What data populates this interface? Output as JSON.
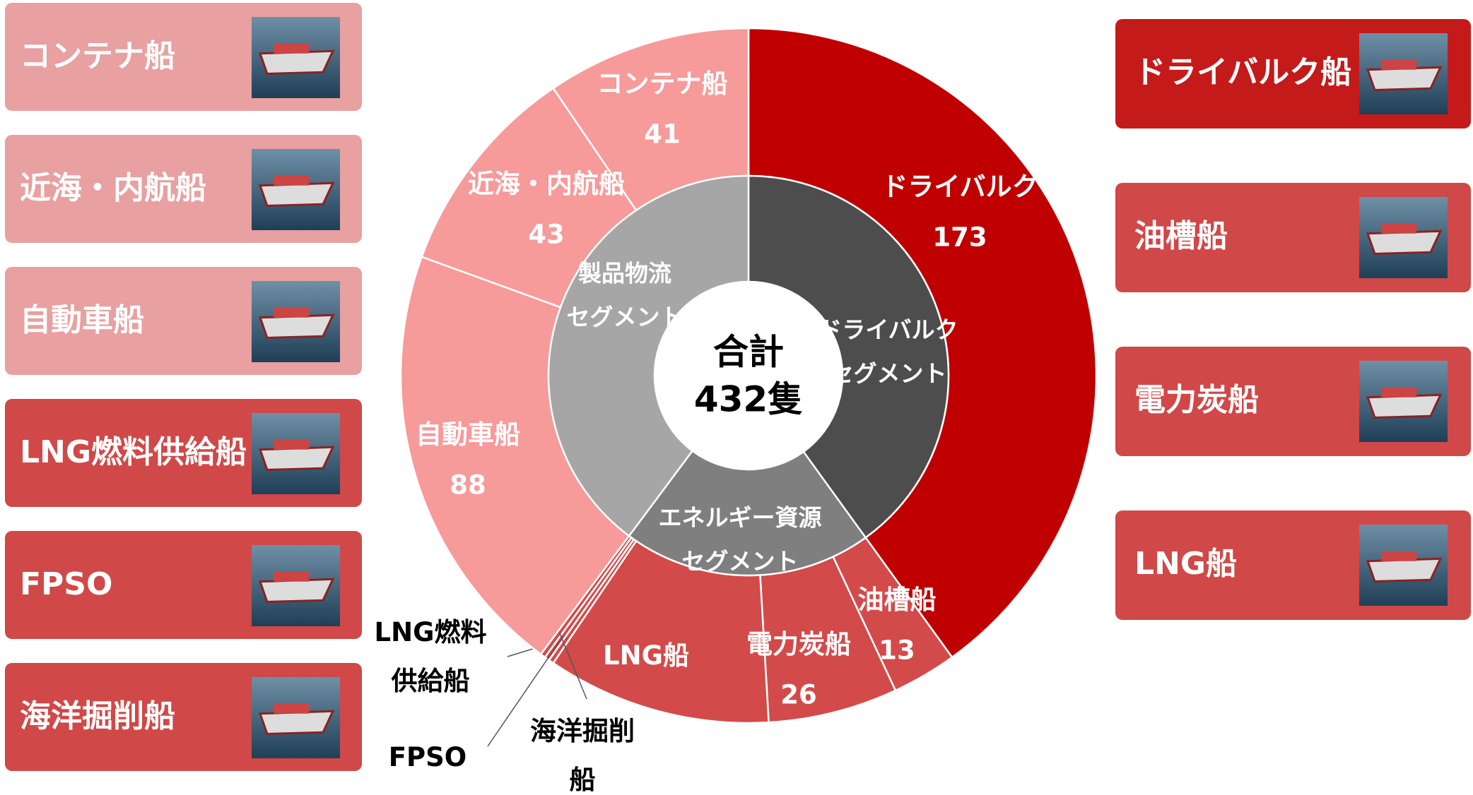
{
  "chart_data": {
    "type": "sunburst",
    "center": [
      "合計",
      "432隻"
    ],
    "segments": [
      {
        "name": [
          "ドライバルク",
          "セグメント"
        ],
        "color": "#4d4d4d",
        "item_color": "#c00000",
        "items": [
          {
            "name": [
              "ドライバルク"
            ],
            "value": 173
          }
        ]
      },
      {
        "name": [
          "エネルギー資源",
          "セグメント"
        ],
        "color": "#7f7f7f",
        "item_color": "#d34a4a",
        "items": [
          {
            "name": [
              "油槽船"
            ],
            "value": 13
          },
          {
            "name": [
              "電力炭船"
            ],
            "value": 26
          },
          {
            "name": [
              "LNG船"
            ],
            "value": 45
          },
          {
            "name": [
              "LNG燃料",
              "供給船"
            ],
            "value": 1
          },
          {
            "name": [
              "FPSO"
            ],
            "value": 1
          },
          {
            "name": [
              "海洋掘削",
              "船"
            ],
            "value": 1
          }
        ]
      },
      {
        "name": [
          "製品物流",
          "セグメント"
        ],
        "color": "#a6a6a6",
        "item_color": "#f79a9a",
        "items": [
          {
            "name": [
              "自動車船"
            ],
            "value": 88
          },
          {
            "name": [
              "近海・内航船"
            ],
            "value": 43
          },
          {
            "name": [
              "コンテナ船"
            ],
            "value": 41
          }
        ]
      }
    ],
    "legend": {
      "left": [
        {
          "name": "コンテナ船",
          "color": "#e8a0a0"
        },
        {
          "name": "近海・内航船",
          "color": "#e8a0a0"
        },
        {
          "name": "自動車船",
          "color": "#e8a0a0"
        },
        {
          "name": "LNG燃料供給船",
          "color": "#d04848"
        },
        {
          "name": "FPSO",
          "color": "#d04848"
        },
        {
          "name": "海洋掘削船",
          "color": "#d04848"
        }
      ],
      "right": [
        {
          "name": "ドライバルク船",
          "color": "#c41a1a"
        },
        {
          "name": "油槽船",
          "color": "#d04848"
        },
        {
          "name": "電力炭船",
          "color": "#d04848"
        },
        {
          "name": "LNG船",
          "color": "#d04848"
        }
      ]
    }
  }
}
